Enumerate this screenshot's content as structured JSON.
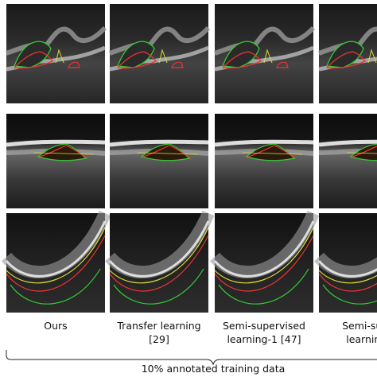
{
  "columns": [
    {
      "caption": [
        "Ours"
      ]
    },
    {
      "caption": [
        "Transfer learning",
        "[29]"
      ]
    },
    {
      "caption": [
        "Semi-supervised",
        "learning-1 [47]"
      ]
    },
    {
      "caption": [
        "Semi-supe",
        "learning-"
      ]
    }
  ],
  "footer": "10% annotated training data"
}
